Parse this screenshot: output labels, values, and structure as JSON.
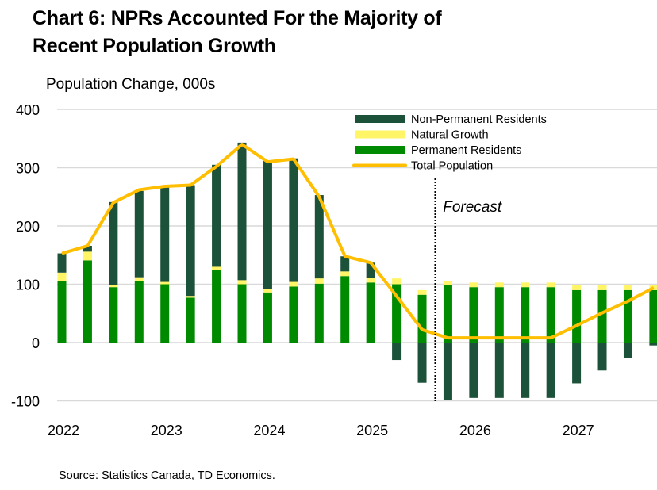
{
  "title_line1": "Chart 6: NPRs Accounted For the Majority of",
  "title_line2": "Recent Population Growth",
  "source": "Source: Statistics Canada, TD Economics.",
  "chart_data": {
    "type": "bar",
    "stacked": true,
    "title": "Chart 6: NPRs Accounted For the Majority of Recent Population Growth",
    "ylabel": "Population Change, 000s",
    "ylim": [
      -100,
      400
    ],
    "yticks": [
      400,
      300,
      200,
      100,
      0,
      -100
    ],
    "grid": true,
    "legend_placement": "top-right",
    "x_year_labels": [
      "2022",
      "2023",
      "2024",
      "2025",
      "2026",
      "2027"
    ],
    "categories": [
      "2022Q1",
      "2022Q2",
      "2022Q3",
      "2022Q4",
      "2023Q1",
      "2023Q2",
      "2023Q3",
      "2023Q4",
      "2024Q1",
      "2024Q2",
      "2024Q3",
      "2024Q4",
      "2025Q1",
      "2025Q2",
      "2025Q3",
      "2025Q4",
      "2026Q1",
      "2026Q2",
      "2026Q3",
      "2026Q4",
      "2027Q1",
      "2027Q2",
      "2027Q3",
      "2027Q4"
    ],
    "forecast_label": "Forecast",
    "forecast_start": "2025Q4",
    "series": [
      {
        "name": "Permanent Residents",
        "color": "#008a00",
        "kind": "bar",
        "values": [
          105,
          141,
          95,
          105,
          100,
          77,
          125,
          100,
          86,
          96,
          101,
          114,
          103,
          100,
          82,
          99,
          95,
          95,
          95,
          95,
          90,
          90,
          90,
          90
        ]
      },
      {
        "name": "Natural Growth",
        "color": "#fff566",
        "kind": "bar",
        "values": [
          15,
          15,
          4,
          7,
          4,
          3,
          5,
          7,
          6,
          8,
          9,
          8,
          8,
          10,
          8,
          7,
          8,
          8,
          8,
          8,
          9,
          9,
          9,
          9
        ]
      },
      {
        "name": "Non-Permanent Residents",
        "color": "#1d523a",
        "kind": "bar",
        "values": [
          33,
          10,
          142,
          148,
          163,
          190,
          175,
          236,
          220,
          212,
          143,
          26,
          26,
          -30,
          -69,
          -98,
          -95,
          -95,
          -95,
          -95,
          -70,
          -48,
          -27,
          -5
        ]
      },
      {
        "name": "Total Population",
        "color": "#ffbf00",
        "kind": "line",
        "values": [
          153,
          166,
          240,
          262,
          268,
          270,
          302,
          340,
          310,
          315,
          250,
          148,
          137,
          80,
          22,
          8,
          8,
          8,
          8,
          8,
          29,
          51,
          71,
          94
        ]
      }
    ],
    "legend_order": [
      "Non-Permanent Residents",
      "Natural Growth",
      "Permanent Residents",
      "Total Population"
    ]
  }
}
